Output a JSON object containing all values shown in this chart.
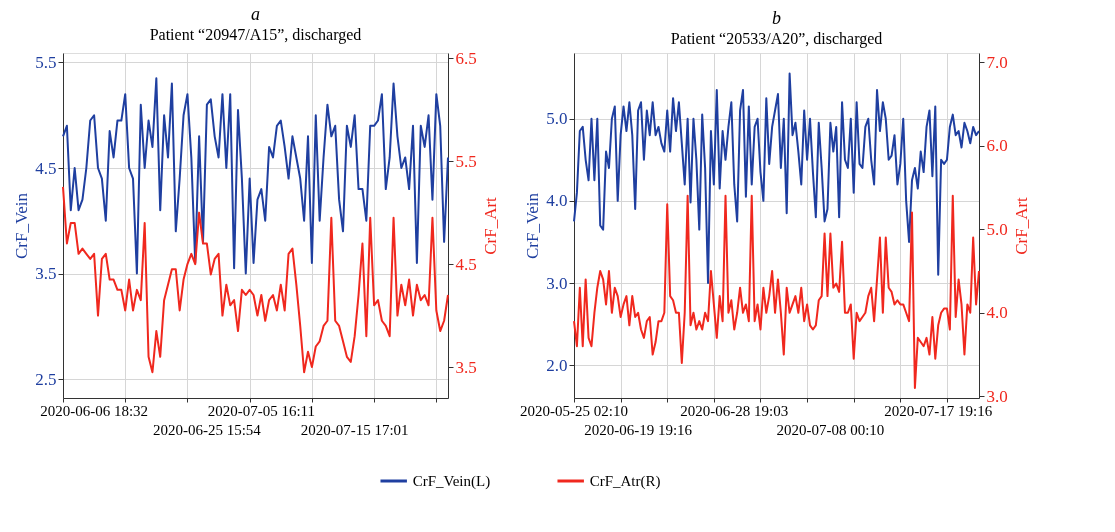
{
  "chart_data": [
    {
      "type": "line",
      "title": "a",
      "subtitle": "Patient “20947/A15”, discharged",
      "ylabel": "CrF_Vein",
      "y2label": "CrF_Art",
      "categories": [
        null,
        null,
        null,
        null,
        null,
        null,
        null,
        null,
        "2020-06-06 18:32",
        null,
        null,
        null,
        null,
        null,
        null,
        null,
        null,
        null,
        null,
        null,
        null,
        null,
        null,
        null,
        null,
        null,
        null,
        null,
        null,
        null,
        null,
        null,
        null,
        null,
        null,
        null,
        null,
        "2020-06-25 15:54",
        null,
        null,
        null,
        null,
        null,
        null,
        null,
        null,
        null,
        null,
        null,
        null,
        null,
        "2020-07-05 16:11",
        null,
        null,
        null,
        null,
        null,
        null,
        null,
        null,
        null,
        null,
        null,
        null,
        null,
        null,
        null,
        null,
        null,
        null,
        null,
        null,
        null,
        null,
        null,
        "2020-07-15 17:01",
        null,
        null,
        null,
        null,
        null,
        null,
        null,
        null,
        null,
        null,
        null,
        null,
        null,
        null,
        null,
        null,
        null,
        null,
        null,
        null,
        null,
        null,
        null,
        null
      ],
      "ylim": [
        2.32,
        5.59
      ],
      "yticks": [
        2.5,
        3.5,
        4.5,
        5.5
      ],
      "y2lim": [
        3.2,
        6.55
      ],
      "y2ticks": [
        3.5,
        4.5,
        5.5,
        6.5
      ],
      "grid": true,
      "legend": "bottom",
      "line_style": "solid",
      "series": [
        {
          "name": "CrF_Vein(L)",
          "color": "#1f3fa0",
          "values": [
            4.8,
            4.9,
            4.1,
            4.5,
            4.1,
            4.2,
            4.5,
            4.95,
            5.0,
            4.5,
            4.4,
            4.0,
            4.85,
            4.6,
            4.95,
            4.95,
            5.2,
            4.5,
            4.4,
            3.5,
            5.1,
            4.5,
            4.95,
            4.7,
            5.35,
            4.1,
            5.0,
            4.6,
            5.3,
            3.9,
            4.4,
            5.0,
            5.2,
            4.6,
            3.6,
            4.8,
            3.8,
            5.1,
            5.15,
            4.8,
            4.6,
            5.2,
            4.5,
            5.2,
            3.55,
            5.05,
            4.4,
            3.5,
            4.4,
            3.6,
            4.2,
            4.3,
            4.0,
            4.7,
            4.6,
            4.9,
            4.95,
            4.7,
            4.4,
            4.8,
            4.6,
            4.4,
            4.0,
            4.8,
            3.6,
            5.0,
            4.0,
            4.6,
            5.1,
            4.8,
            4.9,
            4.2,
            3.9,
            4.9,
            4.7,
            5.0,
            4.3,
            4.3,
            4.0,
            4.9,
            4.9,
            4.95,
            5.2,
            4.3,
            4.6,
            5.3,
            4.8,
            4.5,
            4.6,
            4.3,
            4.9,
            3.6,
            4.9,
            4.7,
            5.0,
            4.2,
            5.2,
            4.9,
            3.8,
            4.6
          ]
        },
        {
          "name": "CrF_Atr(R)",
          "color": "#f0281e",
          "axis": "y2",
          "values": [
            5.25,
            4.7,
            4.9,
            4.9,
            4.6,
            4.65,
            4.6,
            4.55,
            4.6,
            4.0,
            4.55,
            4.6,
            4.35,
            4.35,
            4.25,
            4.25,
            4.05,
            4.35,
            4.05,
            4.25,
            4.15,
            4.9,
            3.6,
            3.45,
            3.85,
            3.6,
            4.15,
            4.3,
            4.45,
            4.45,
            4.05,
            4.35,
            4.5,
            4.6,
            4.5,
            5.0,
            4.7,
            4.7,
            4.4,
            4.55,
            4.6,
            4.0,
            4.3,
            4.1,
            4.15,
            3.85,
            4.25,
            4.2,
            4.25,
            4.2,
            4.0,
            4.2,
            3.95,
            4.15,
            4.2,
            4.05,
            4.3,
            4.05,
            4.6,
            4.65,
            4.3,
            3.9,
            3.45,
            3.65,
            3.5,
            3.7,
            3.75,
            3.9,
            3.95,
            4.95,
            3.95,
            3.9,
            3.75,
            3.6,
            3.55,
            3.8,
            4.2,
            4.7,
            3.8,
            4.95,
            4.1,
            4.15,
            3.95,
            3.9,
            3.8,
            4.95,
            4.0,
            4.3,
            4.1,
            4.35,
            4.0,
            4.3,
            4.15,
            4.2,
            4.1,
            4.95,
            4.05,
            3.85,
            3.95,
            4.2
          ]
        }
      ]
    },
    {
      "type": "line",
      "title": "b",
      "subtitle": "Patient “20533/A20”, discharged",
      "ylabel": "CrF_Vein",
      "y2label": "CrF_Art",
      "categories": [
        "2020-05-25 02:10",
        null,
        null,
        null,
        null,
        null,
        null,
        null,
        null,
        null,
        null,
        null,
        null,
        null,
        null,
        null,
        null,
        null,
        null,
        null,
        null,
        null,
        "2020-06-19 19:16",
        null,
        null,
        null,
        null,
        null,
        null,
        null,
        null,
        null,
        null,
        null,
        null,
        null,
        null,
        null,
        null,
        null,
        null,
        null,
        null,
        null,
        null,
        null,
        null,
        null,
        null,
        null,
        null,
        null,
        null,
        null,
        null,
        "2020-06-28 19:03",
        null,
        null,
        null,
        null,
        null,
        null,
        null,
        null,
        null,
        null,
        null,
        null,
        null,
        null,
        null,
        null,
        null,
        null,
        null,
        null,
        null,
        null,
        null,
        null,
        null,
        null,
        null,
        null,
        null,
        null,
        null,
        null,
        "2020-07-08 00:10",
        null,
        null,
        null,
        null,
        null,
        null,
        null,
        null,
        null,
        null,
        null,
        null,
        null,
        null,
        null,
        null,
        null,
        null,
        null,
        null,
        null,
        null,
        null,
        null,
        null,
        null,
        null,
        null,
        null,
        null,
        null,
        null,
        null,
        null,
        null,
        null,
        "2020-07-17 19:16",
        null,
        null,
        null,
        null,
        null,
        null,
        null,
        null,
        null,
        null,
        null,
        null,
        null,
        null
      ],
      "ylim": [
        1.6,
        5.8
      ],
      "yticks": [
        {
          "value": 2,
          "label": "2.0"
        },
        {
          "value": 3,
          "label": "3.0"
        },
        {
          "value": 4,
          "label": "4.0"
        },
        {
          "value": 5,
          "label": "5.0"
        }
      ],
      "y2lim": [
        2.98,
        7.11
      ],
      "y2ticks": [
        {
          "value": 3,
          "label": "3.0"
        },
        {
          "value": 4,
          "label": "4.0"
        },
        {
          "value": 5,
          "label": "5.0"
        },
        {
          "value": 6,
          "label": "6.0"
        },
        {
          "value": 7,
          "label": "7.0"
        }
      ],
      "grid": true,
      "line_style": "solid",
      "series": [
        {
          "name": "CrF_Vein(L)",
          "color": "#1f3fa0",
          "values": [
            3.75,
            4.1,
            4.85,
            4.9,
            4.5,
            4.25,
            5.0,
            4.25,
            5.0,
            3.7,
            3.65,
            4.6,
            4.4,
            5.0,
            5.15,
            4.0,
            4.8,
            5.15,
            4.85,
            5.2,
            4.8,
            3.9,
            5.1,
            5.2,
            4.5,
            5.1,
            4.8,
            5.2,
            4.8,
            4.9,
            4.7,
            4.6,
            5.1,
            4.6,
            5.25,
            4.85,
            5.2,
            4.7,
            4.2,
            5.0,
            3.98,
            5.0,
            4.5,
            3.65,
            5.05,
            4.4,
            3.0,
            4.85,
            4.2,
            5.35,
            4.15,
            4.85,
            4.5,
            4.9,
            5.2,
            4.2,
            3.75,
            5.1,
            5.35,
            4.05,
            5.15,
            4.2,
            4.9,
            5.0,
            4.35,
            4.0,
            5.25,
            4.45,
            4.9,
            5.1,
            5.3,
            4.4,
            5.0,
            3.85,
            5.55,
            4.8,
            4.95,
            4.6,
            4.2,
            5.1,
            4.5,
            5.0,
            4.35,
            3.8,
            4.95,
            4.4,
            3.75,
            3.9,
            4.95,
            4.6,
            4.9,
            3.8,
            5.2,
            4.5,
            4.4,
            5.0,
            4.1,
            5.2,
            4.45,
            4.4,
            4.9,
            5.0,
            4.5,
            4.2,
            5.35,
            4.85,
            5.2,
            5.0,
            4.5,
            4.55,
            4.8,
            4.2,
            4.45,
            5.0,
            4.0,
            3.5,
            4.25,
            4.4,
            4.15,
            4.6,
            4.35,
            4.9,
            5.1,
            4.3,
            5.15,
            3.1,
            4.5,
            4.45,
            4.5,
            4.9,
            5.05,
            4.8,
            4.85,
            4.65,
            4.95,
            4.85,
            4.7,
            4.9,
            4.8,
            4.85
          ]
        },
        {
          "name": "CrF_Atr(R)",
          "color": "#f0281e",
          "axis": "y2",
          "values": [
            3.9,
            3.6,
            4.3,
            3.6,
            4.4,
            3.7,
            3.6,
            4.0,
            4.3,
            4.5,
            4.4,
            4.1,
            4.5,
            4.0,
            4.3,
            4.2,
            3.95,
            4.1,
            4.2,
            3.85,
            4.2,
            3.95,
            4.0,
            3.8,
            3.7,
            3.9,
            3.95,
            3.5,
            3.65,
            3.9,
            3.9,
            4.0,
            5.3,
            4.2,
            4.15,
            4.0,
            4.0,
            3.4,
            4.0,
            5.4,
            3.85,
            4.0,
            3.8,
            3.9,
            3.8,
            4.0,
            3.9,
            4.5,
            4.1,
            3.7,
            4.2,
            3.9,
            5.4,
            4.0,
            4.15,
            3.8,
            4.0,
            4.3,
            4.0,
            4.1,
            3.9,
            5.4,
            3.9,
            4.1,
            3.8,
            4.3,
            4.0,
            4.2,
            4.5,
            4.0,
            4.4,
            4.0,
            3.5,
            4.3,
            4.0,
            4.1,
            4.2,
            4.0,
            4.3,
            3.9,
            4.1,
            3.85,
            3.8,
            3.85,
            4.15,
            4.2,
            4.95,
            4.2,
            4.95,
            4.3,
            4.35,
            4.25,
            4.85,
            4.0,
            4.0,
            4.1,
            3.45,
            4.0,
            3.9,
            3.95,
            4.0,
            4.2,
            4.3,
            3.9,
            4.4,
            4.9,
            4.0,
            4.9,
            4.3,
            4.25,
            4.1,
            4.15,
            4.1,
            4.1,
            4.0,
            3.9,
            5.2,
            3.1,
            3.7,
            3.65,
            3.6,
            3.7,
            3.5,
            3.95,
            3.45,
            3.85,
            4.0,
            4.05,
            4.05,
            3.8,
            5.4,
            3.95,
            4.4,
            4.1,
            3.5,
            4.1,
            4.0,
            4.9,
            4.1,
            4.5
          ]
        }
      ]
    }
  ]
}
